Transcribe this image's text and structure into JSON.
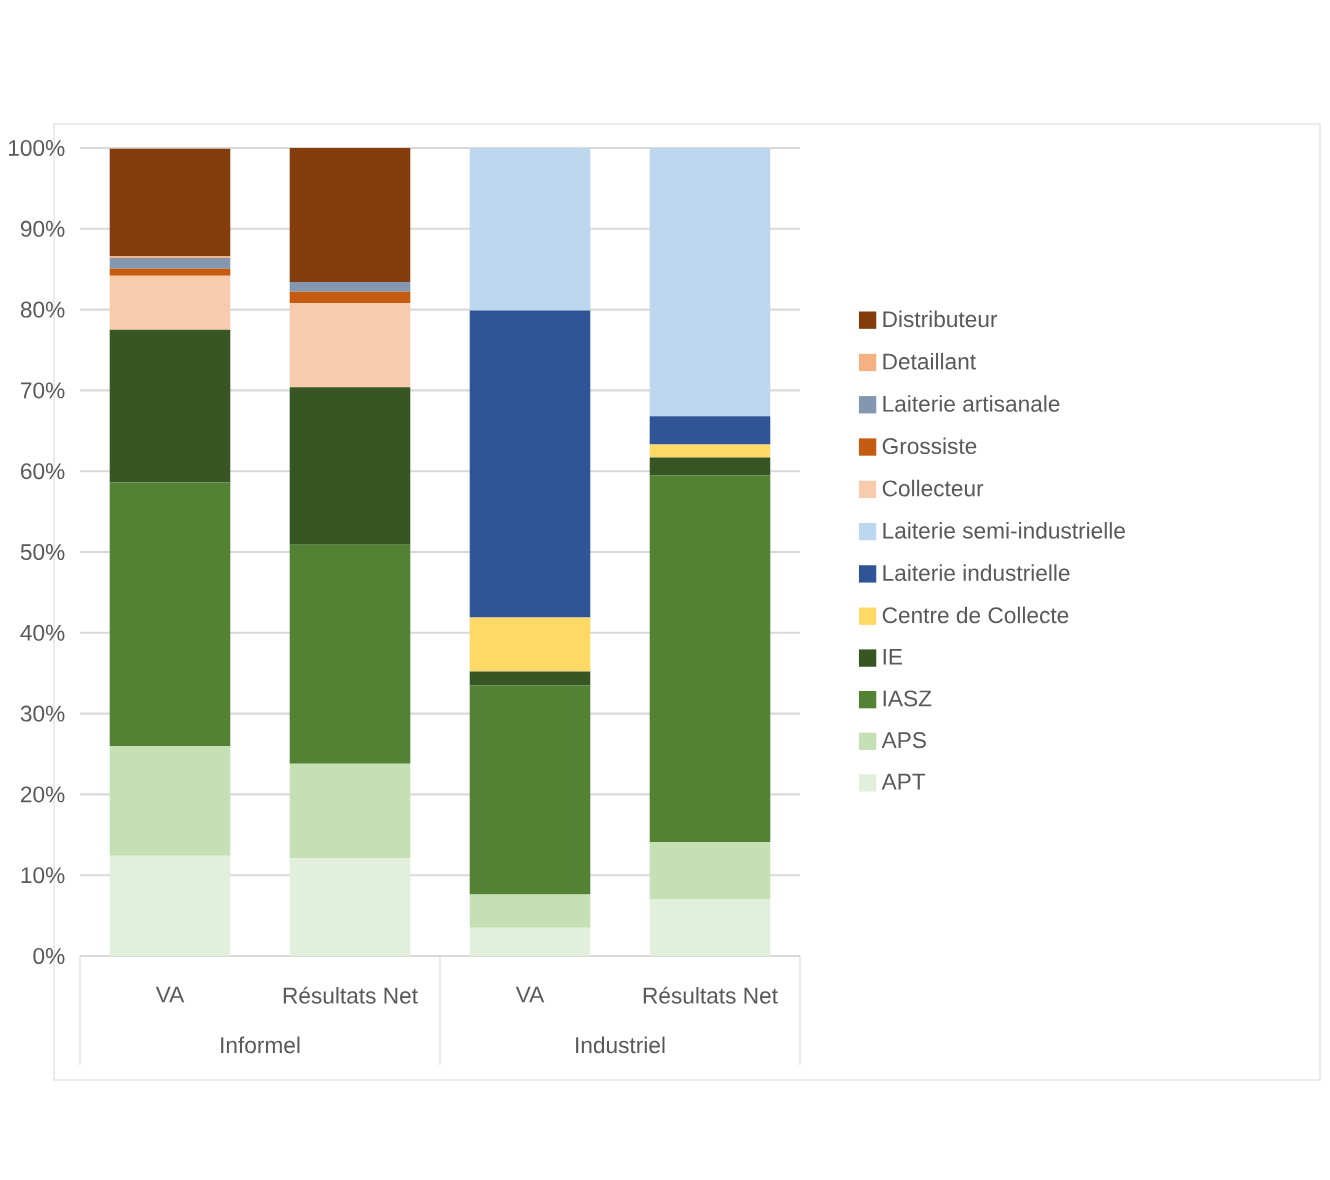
{
  "chart_data": {
    "type": "bar",
    "stacked": true,
    "categories": [
      "VA",
      "Résultats Net",
      "VA",
      "Résultats Net"
    ],
    "annotations": [
      "Informel",
      "Industriel"
    ],
    "ylim": [
      0,
      100
    ],
    "yticks": [
      {
        "value": 0,
        "label": "0%"
      },
      {
        "value": 10,
        "label": "10%"
      },
      {
        "value": 20,
        "label": "20%"
      },
      {
        "value": 30,
        "label": "30%"
      },
      {
        "value": 40,
        "label": "40%"
      },
      {
        "value": 50,
        "label": "50%"
      },
      {
        "value": 60,
        "label": "60%"
      },
      {
        "value": 70,
        "label": "70%"
      },
      {
        "value": 80,
        "label": "80%"
      },
      {
        "value": 90,
        "label": "90%"
      },
      {
        "value": 100,
        "label": "100%"
      }
    ],
    "grid": "y",
    "legend": "right",
    "series": [
      {
        "name": "APT",
        "color": "#e2efda",
        "values": [
          12.4,
          12.1,
          3.5,
          7.0
        ]
      },
      {
        "name": "APS",
        "color": "#c5e0b4",
        "values": [
          13.6,
          11.7,
          4.1,
          7.1
        ]
      },
      {
        "name": "IASZ",
        "color": "#548235",
        "values": [
          32.6,
          27.1,
          25.9,
          45.4
        ]
      },
      {
        "name": "IE",
        "color": "#375623",
        "values": [
          18.9,
          19.5,
          1.7,
          2.2
        ]
      },
      {
        "name": "Centre de Collecte",
        "color": "#ffd966",
        "values": [
          0,
          0,
          6.7,
          1.6
        ]
      },
      {
        "name": "Laiterie industrielle",
        "color": "#2f5597",
        "values": [
          0,
          0,
          38.0,
          3.5
        ]
      },
      {
        "name": "Laiterie semi-industrielle",
        "color": "#bdd7ee",
        "values": [
          0,
          0,
          20.1,
          33.2
        ]
      },
      {
        "name": "Collecteur",
        "color": "#f8cbad",
        "values": [
          6.7,
          10.4,
          0,
          0
        ]
      },
      {
        "name": "Grossiste",
        "color": "#c55a11",
        "values": [
          0.9,
          1.4,
          0,
          0
        ]
      },
      {
        "name": "Laiterie artisanale",
        "color": "#8497b0",
        "values": [
          1.3,
          1.2,
          0,
          0
        ]
      },
      {
        "name": "Detaillant",
        "color": "#f4b183",
        "values": [
          0.2,
          0,
          0,
          0
        ]
      },
      {
        "name": "Distributeur",
        "color": "#843c0c",
        "values": [
          13.3,
          16.6,
          0,
          0
        ]
      }
    ]
  }
}
